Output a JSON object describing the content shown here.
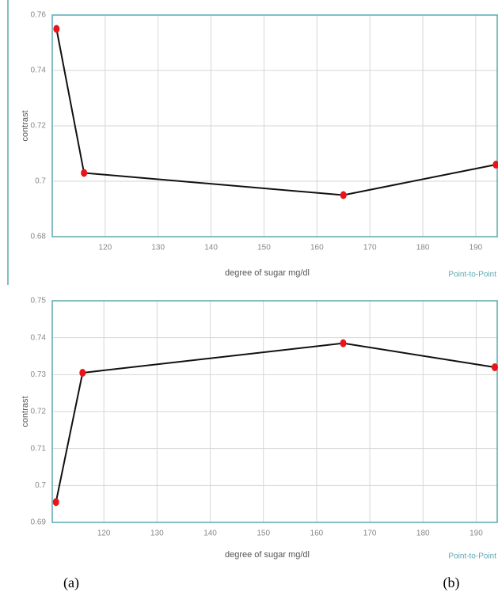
{
  "chart_data": [
    {
      "type": "line",
      "x_label": "degree of sugar mg/dl",
      "y_label": "contrast",
      "legend_text": "Point-to-Point",
      "x": [
        110.8,
        116,
        165,
        193.8
      ],
      "series": [
        {
          "color": "#111111",
          "marker_color": "#e8141a",
          "values": [
            0.755,
            0.703,
            0.695,
            0.706
          ]
        }
      ],
      "xlim": [
        110,
        194.2
      ],
      "xticks": [
        120,
        130,
        140,
        150,
        160,
        170,
        180,
        190
      ],
      "ylim": [
        0.68,
        0.76
      ],
      "yticks": [
        0.68,
        0.7,
        0.72,
        0.74,
        0.76
      ],
      "grid": true
    },
    {
      "type": "line",
      "x_label": "degree of sugar mg/dl",
      "y_label": "contrast",
      "legend_text": "Point-to-Point",
      "x": [
        111,
        116,
        165,
        193.5
      ],
      "series": [
        {
          "color": "#111111",
          "marker_color": "#e8141a",
          "values": [
            0.6955,
            0.7305,
            0.7385,
            0.732
          ]
        }
      ],
      "xlim": [
        110.3,
        194.1
      ],
      "xticks": [
        120,
        130,
        140,
        150,
        160,
        170,
        180,
        190
      ],
      "ylim": [
        0.69,
        0.75
      ],
      "yticks": [
        0.69,
        0.7,
        0.71,
        0.72,
        0.73,
        0.74,
        0.75
      ],
      "grid": true
    }
  ],
  "captions": [
    "(a)",
    "(b)"
  ]
}
